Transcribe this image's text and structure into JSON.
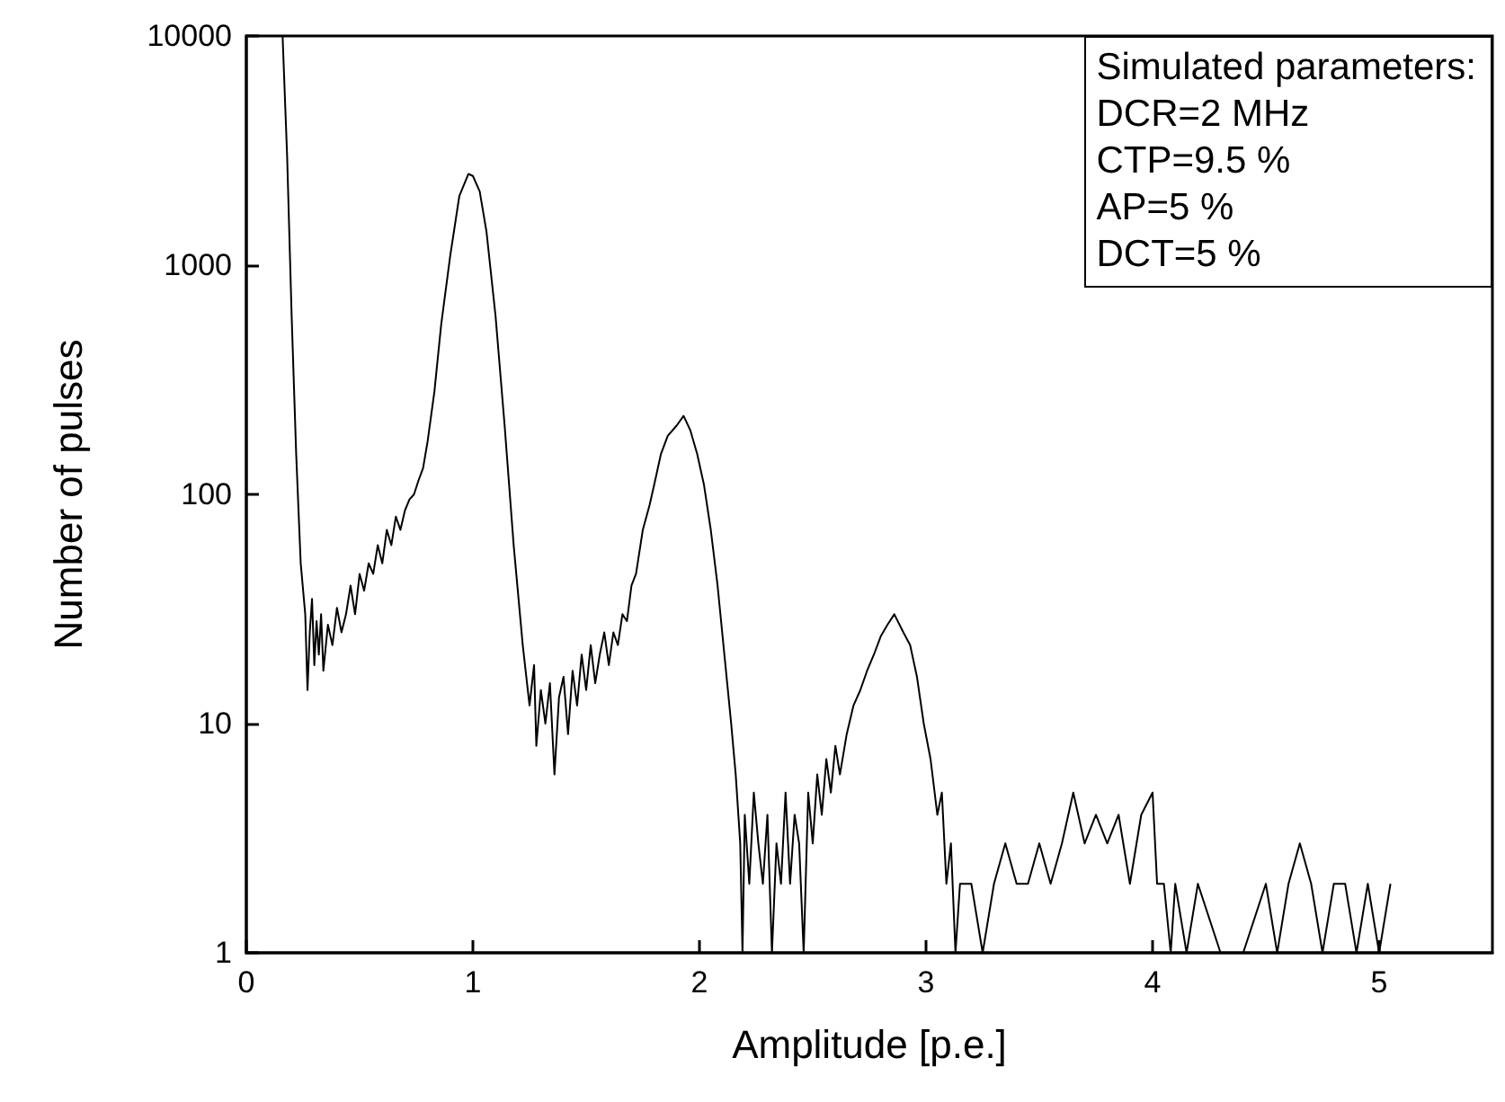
{
  "chart_data": {
    "type": "line",
    "xlabel": "Amplitude [p.e.]",
    "ylabel": "Number of pulses",
    "annotations": [
      "Simulated parameters:",
      "DCR=2 MHz",
      "CTP=9.5 %",
      "AP=5 %",
      "DCT=5 %"
    ],
    "log": "y",
    "grid": false,
    "marker": "none",
    "line_style": "solid",
    "xlim": [
      0,
      5.5
    ],
    "xticks": [
      0,
      1,
      2,
      3,
      4,
      5
    ],
    "ylim": [
      1,
      10000
    ],
    "yticks": [
      1,
      10,
      100,
      1000,
      10000
    ],
    "series": [
      {
        "color": "#000000",
        "x": [
          0.16,
          0.18,
          0.2,
          0.22,
          0.24,
          0.26,
          0.27,
          0.28,
          0.29,
          0.3,
          0.31,
          0.32,
          0.33,
          0.34,
          0.36,
          0.38,
          0.4,
          0.42,
          0.44,
          0.46,
          0.48,
          0.5,
          0.52,
          0.54,
          0.56,
          0.58,
          0.6,
          0.62,
          0.64,
          0.66,
          0.68,
          0.7,
          0.72,
          0.74,
          0.76,
          0.78,
          0.8,
          0.83,
          0.86,
          0.9,
          0.94,
          0.98,
          1.0,
          1.03,
          1.06,
          1.1,
          1.14,
          1.18,
          1.22,
          1.25,
          1.27,
          1.28,
          1.3,
          1.32,
          1.34,
          1.36,
          1.38,
          1.4,
          1.42,
          1.44,
          1.46,
          1.48,
          1.5,
          1.52,
          1.54,
          1.56,
          1.58,
          1.6,
          1.62,
          1.64,
          1.66,
          1.68,
          1.7,
          1.72,
          1.75,
          1.78,
          1.8,
          1.83,
          1.86,
          1.9,
          1.93,
          1.96,
          1.99,
          2.02,
          2.05,
          2.08,
          2.11,
          2.14,
          2.16,
          2.18,
          2.19,
          2.2,
          2.22,
          2.24,
          2.26,
          2.28,
          2.3,
          2.32,
          2.34,
          2.36,
          2.38,
          2.4,
          2.42,
          2.44,
          2.46,
          2.48,
          2.5,
          2.52,
          2.54,
          2.56,
          2.58,
          2.6,
          2.62,
          2.65,
          2.68,
          2.71,
          2.74,
          2.77,
          2.8,
          2.83,
          2.86,
          2.9,
          2.93,
          2.96,
          2.99,
          3.02,
          3.05,
          3.07,
          3.09,
          3.11,
          3.13,
          3.15,
          3.2,
          3.25,
          3.3,
          3.35,
          3.4,
          3.45,
          3.5,
          3.55,
          3.6,
          3.65,
          3.7,
          3.75,
          3.8,
          3.85,
          3.9,
          3.95,
          4.0,
          4.02,
          4.05,
          4.08,
          4.1,
          4.15,
          4.2,
          4.3,
          4.4,
          4.5,
          4.55,
          4.6,
          4.65,
          4.7,
          4.75,
          4.8,
          4.85,
          4.9,
          4.95,
          5.0,
          5.05
        ],
        "values": [
          10000,
          3000,
          600,
          150,
          50,
          30,
          14,
          25,
          35,
          18,
          28,
          20,
          30,
          17,
          27,
          22,
          32,
          25,
          30,
          40,
          30,
          45,
          38,
          50,
          45,
          60,
          50,
          70,
          60,
          80,
          70,
          85,
          95,
          100,
          115,
          130,
          170,
          280,
          550,
          1100,
          2000,
          2500,
          2450,
          2100,
          1400,
          600,
          200,
          60,
          22,
          12,
          18,
          8,
          14,
          10,
          15,
          6,
          13,
          16,
          9,
          17,
          12,
          20,
          14,
          22,
          15,
          20,
          25,
          18,
          25,
          22,
          30,
          28,
          40,
          45,
          70,
          90,
          110,
          150,
          180,
          200,
          220,
          190,
          150,
          110,
          70,
          40,
          20,
          10,
          6,
          3,
          1,
          4,
          2,
          5,
          3,
          2,
          4,
          1,
          3,
          2,
          5,
          2,
          4,
          3,
          1,
          5,
          3,
          6,
          4,
          7,
          5,
          8,
          6,
          9,
          12,
          14,
          17,
          20,
          24,
          27,
          30,
          25,
          22,
          16,
          10,
          7,
          4,
          5,
          2,
          3,
          1,
          2,
          2,
          1,
          2,
          3,
          2,
          2,
          3,
          2,
          3,
          5,
          3,
          4,
          3,
          4,
          2,
          4,
          5,
          2,
          2,
          1,
          2,
          1,
          2,
          1,
          1,
          2,
          1,
          2,
          3,
          2,
          1,
          2,
          2,
          1,
          2,
          1,
          2
        ]
      }
    ]
  }
}
